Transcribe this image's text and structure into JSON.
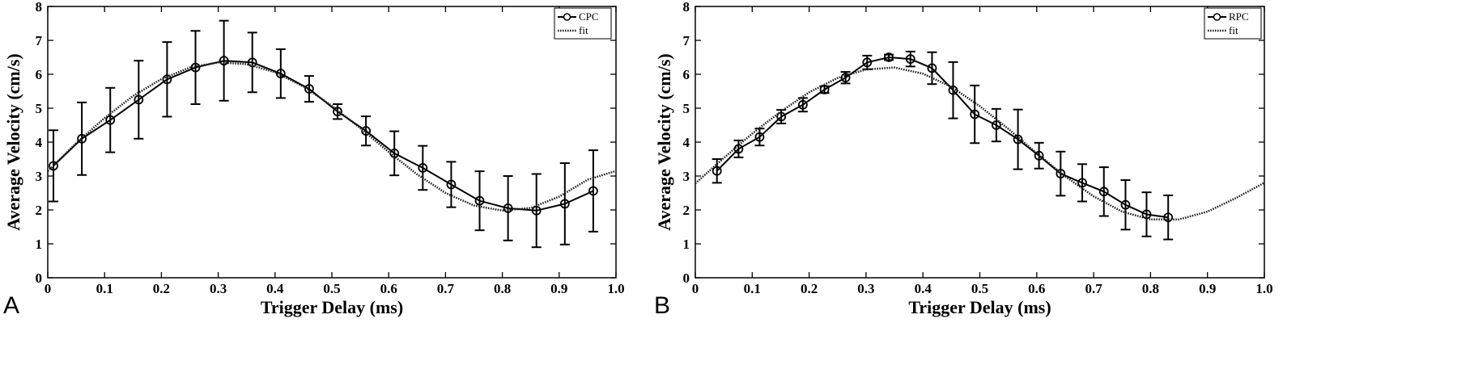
{
  "chart_data": [
    {
      "panel": "A",
      "type": "line",
      "xlabel": "Trigger Delay (ms)",
      "ylabel": "Average Velocity (cm/s)",
      "xlim": [
        0,
        1.0
      ],
      "ylim": [
        0,
        8
      ],
      "xticks": [
        "0",
        "0.1",
        "0.2",
        "0.3",
        "0.4",
        "0.5",
        "0.6",
        "0.7",
        "0.8",
        "0.9",
        "1.0"
      ],
      "yticks": [
        "0",
        "1",
        "2",
        "3",
        "4",
        "5",
        "6",
        "7",
        "8"
      ],
      "grid": false,
      "legend_position": "top-right",
      "series": [
        {
          "name": "CPC",
          "style": "solid-with-circles-and-errorbars",
          "x": [
            0.01,
            0.06,
            0.11,
            0.16,
            0.21,
            0.26,
            0.31,
            0.36,
            0.41,
            0.46,
            0.51,
            0.56,
            0.61,
            0.66,
            0.71,
            0.76,
            0.81,
            0.86,
            0.91,
            0.96
          ],
          "y": [
            3.3,
            4.1,
            4.65,
            5.25,
            5.85,
            6.2,
            6.4,
            6.35,
            6.02,
            5.57,
            4.9,
            4.33,
            3.67,
            3.24,
            2.75,
            2.27,
            2.05,
            1.98,
            2.18,
            2.56
          ],
          "error": [
            1.05,
            1.07,
            0.95,
            1.15,
            1.1,
            1.08,
            1.18,
            0.88,
            0.72,
            0.38,
            0.22,
            0.43,
            0.65,
            0.65,
            0.67,
            0.87,
            0.95,
            1.08,
            1.2,
            1.2
          ]
        },
        {
          "name": "fit",
          "style": "dotted",
          "x": [
            0.0,
            0.05,
            0.1,
            0.15,
            0.2,
            0.25,
            0.3,
            0.35,
            0.4,
            0.45,
            0.5,
            0.55,
            0.6,
            0.65,
            0.7,
            0.75,
            0.8,
            0.85,
            0.9,
            0.95,
            1.0
          ],
          "y": [
            3.14,
            3.97,
            4.71,
            5.36,
            5.86,
            6.2,
            6.35,
            6.3,
            6.06,
            5.64,
            5.07,
            4.41,
            3.71,
            3.05,
            2.5,
            2.13,
            1.98,
            2.06,
            2.39,
            2.89,
            3.15
          ]
        }
      ]
    },
    {
      "panel": "B",
      "type": "line",
      "xlabel": "Trigger Delay (ms)",
      "ylabel": "Average Velocity (cm/s)",
      "xlim": [
        0,
        1.0
      ],
      "ylim": [
        0,
        8
      ],
      "xticks": [
        "0",
        "0.1",
        "0.2",
        "0.3",
        "0.4",
        "0.5",
        "0.6",
        "0.7",
        "0.8",
        "0.9",
        "1.0"
      ],
      "yticks": [
        "0",
        "1",
        "2",
        "3",
        "4",
        "5",
        "6",
        "7",
        "8"
      ],
      "grid": false,
      "legend_position": "top-right",
      "series": [
        {
          "name": "RPC",
          "style": "solid-with-circles-and-errorbars",
          "x": [
            0.038,
            0.076,
            0.113,
            0.151,
            0.189,
            0.227,
            0.264,
            0.302,
            0.34,
            0.378,
            0.416,
            0.453,
            0.491,
            0.529,
            0.567,
            0.604,
            0.642,
            0.68,
            0.718,
            0.756,
            0.793,
            0.831
          ],
          "y": [
            3.15,
            3.8,
            4.15,
            4.75,
            5.1,
            5.55,
            5.9,
            6.35,
            6.5,
            6.45,
            6.18,
            5.53,
            4.82,
            4.5,
            4.08,
            3.6,
            3.07,
            2.8,
            2.54,
            2.15,
            1.87,
            1.78
          ],
          "error": [
            0.35,
            0.25,
            0.25,
            0.2,
            0.2,
            0.1,
            0.17,
            0.2,
            0.08,
            0.22,
            0.47,
            0.83,
            0.85,
            0.48,
            0.88,
            0.38,
            0.65,
            0.55,
            0.72,
            0.73,
            0.65,
            0.65
          ]
        },
        {
          "name": "fit",
          "style": "dotted",
          "x": [
            0.0,
            0.05,
            0.1,
            0.15,
            0.2,
            0.25,
            0.3,
            0.35,
            0.4,
            0.45,
            0.5,
            0.55,
            0.6,
            0.65,
            0.7,
            0.75,
            0.8,
            0.85,
            0.9,
            0.95,
            1.0
          ],
          "y": [
            2.78,
            3.53,
            4.25,
            4.9,
            5.47,
            5.89,
            6.14,
            6.2,
            6.02,
            5.63,
            5.06,
            4.39,
            3.67,
            2.99,
            2.4,
            1.95,
            1.72,
            1.72,
            1.95,
            2.35,
            2.8
          ]
        }
      ]
    }
  ]
}
